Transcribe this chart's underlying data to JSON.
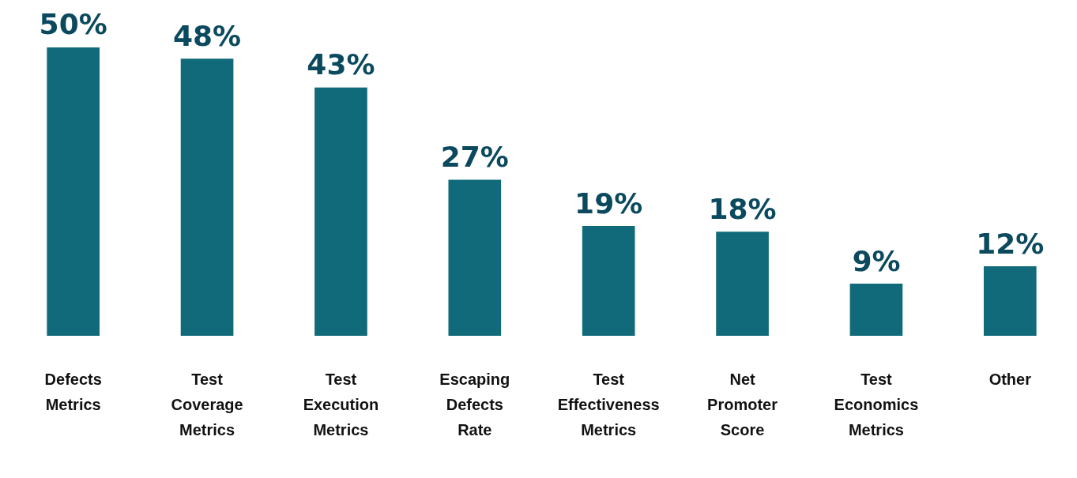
{
  "chart_data": {
    "type": "bar",
    "categories": [
      "Defects Metrics",
      "Test Coverage Metrics",
      "Test Execution Metrics",
      "Escaping Defects Rate",
      "Test Effectiveness Metrics",
      "Net Promoter Score",
      "Test Economics Metrics",
      "Other"
    ],
    "values": [
      50,
      48,
      43,
      27,
      19,
      18,
      9,
      12
    ],
    "value_labels": [
      "50%",
      "48%",
      "43%",
      "27%",
      "19%",
      "18%",
      "9%",
      "12%"
    ],
    "color": "#116a79",
    "tick_labels": "x",
    "grid": false,
    "legend": false
  }
}
